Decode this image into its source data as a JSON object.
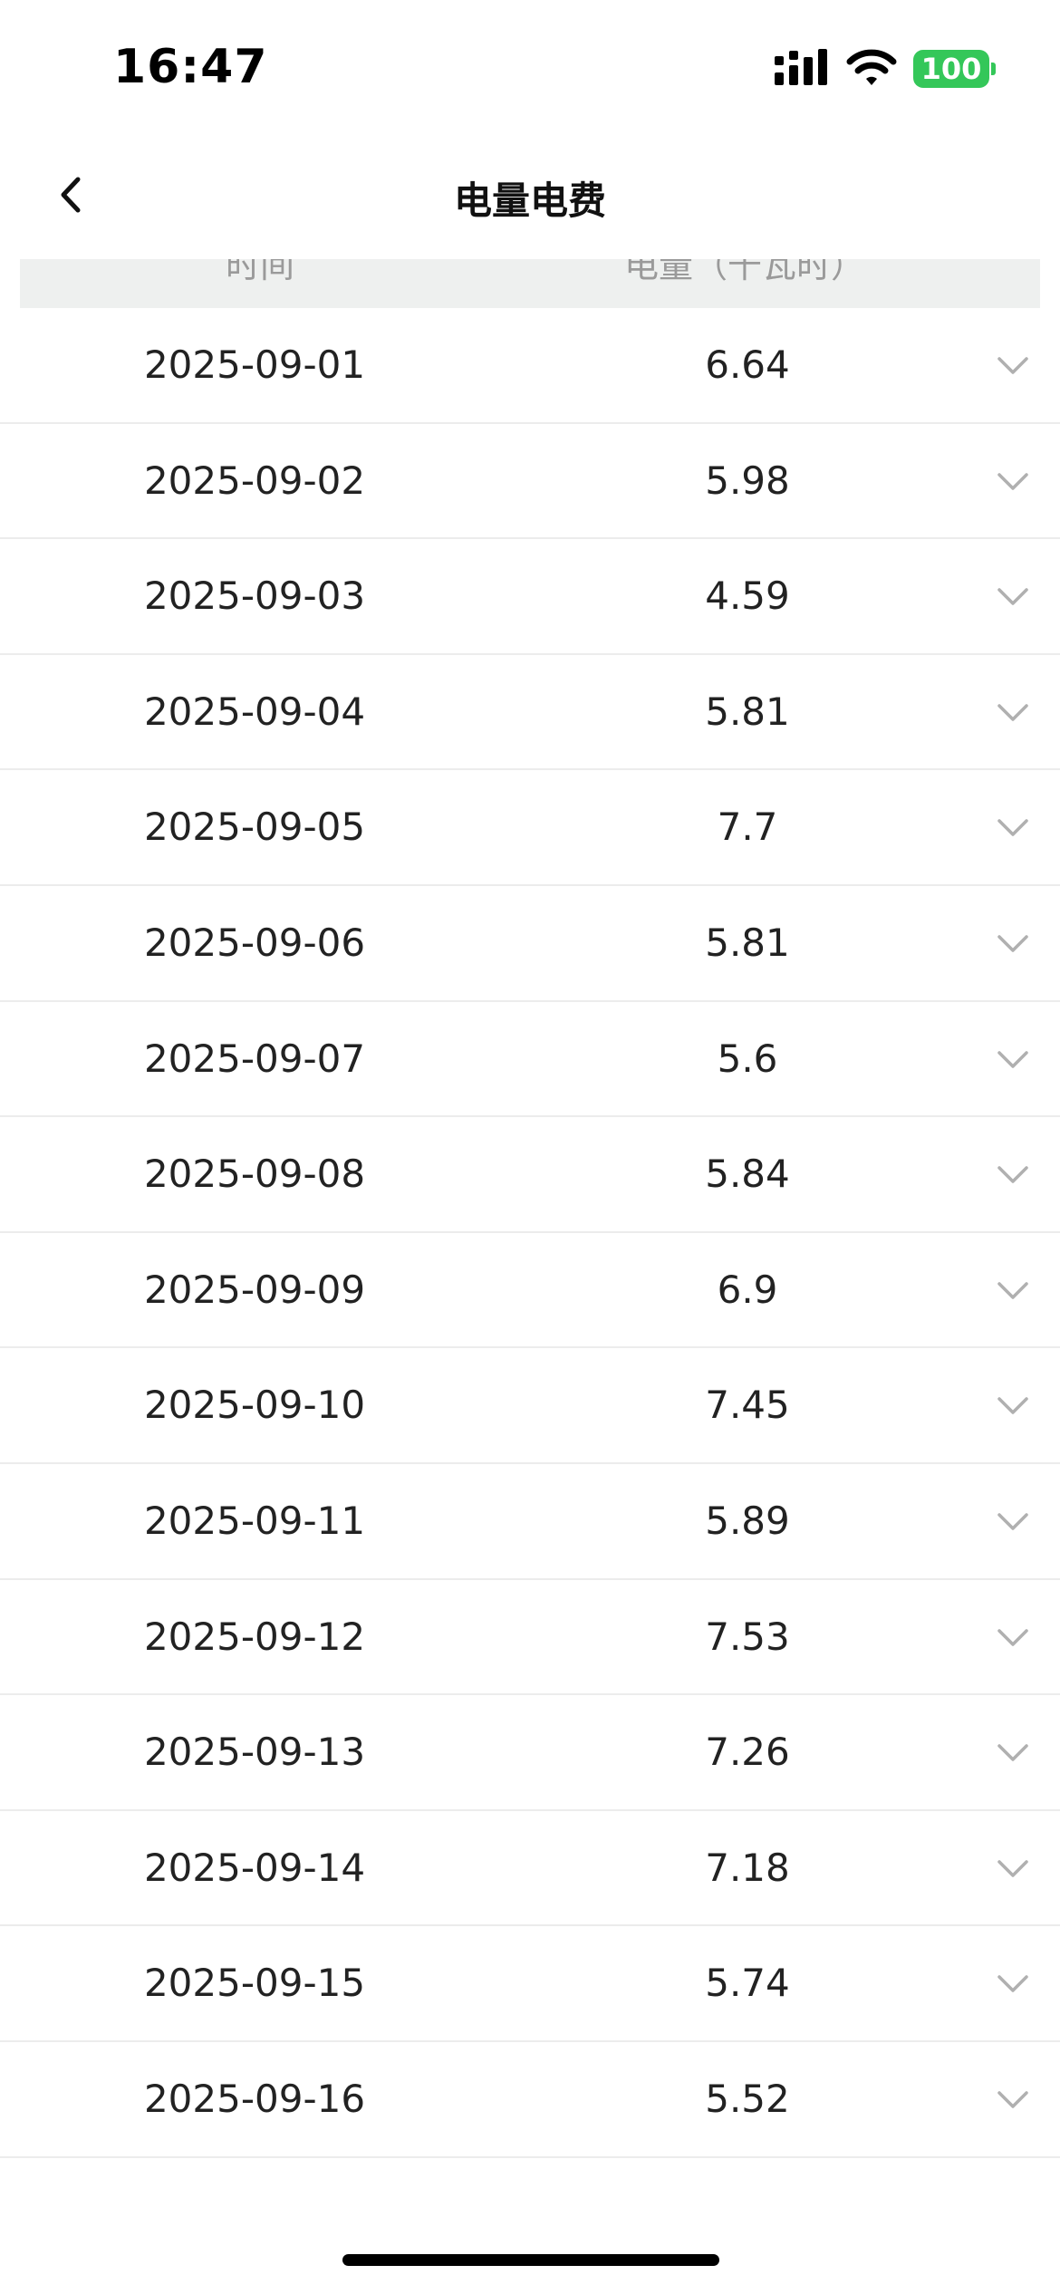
{
  "status_bar": {
    "time": "16:47",
    "battery": "100",
    "icons": [
      "cellular-signal-icon",
      "wifi-icon",
      "battery-icon"
    ]
  },
  "nav": {
    "title": "电量电费",
    "back_icon": "chevron-left-icon"
  },
  "table": {
    "columns": [
      "时间",
      "电量（千瓦时）"
    ],
    "rows": [
      {
        "date": "2025-09-01",
        "value": "6.64"
      },
      {
        "date": "2025-09-02",
        "value": "5.98"
      },
      {
        "date": "2025-09-03",
        "value": "4.59"
      },
      {
        "date": "2025-09-04",
        "value": "5.81"
      },
      {
        "date": "2025-09-05",
        "value": "7.7"
      },
      {
        "date": "2025-09-06",
        "value": "5.81"
      },
      {
        "date": "2025-09-07",
        "value": "5.6"
      },
      {
        "date": "2025-09-08",
        "value": "5.84"
      },
      {
        "date": "2025-09-09",
        "value": "6.9"
      },
      {
        "date": "2025-09-10",
        "value": "7.45"
      },
      {
        "date": "2025-09-11",
        "value": "5.89"
      },
      {
        "date": "2025-09-12",
        "value": "7.53"
      },
      {
        "date": "2025-09-13",
        "value": "7.26"
      },
      {
        "date": "2025-09-14",
        "value": "7.18"
      },
      {
        "date": "2025-09-15",
        "value": "5.74"
      },
      {
        "date": "2025-09-16",
        "value": "5.52"
      }
    ],
    "row_icon": "chevron-down-icon"
  },
  "colors": {
    "battery": "#34c759",
    "header_bg": "#eef0ef",
    "divider": "#ececec",
    "chevron": "#b0b0b0"
  }
}
